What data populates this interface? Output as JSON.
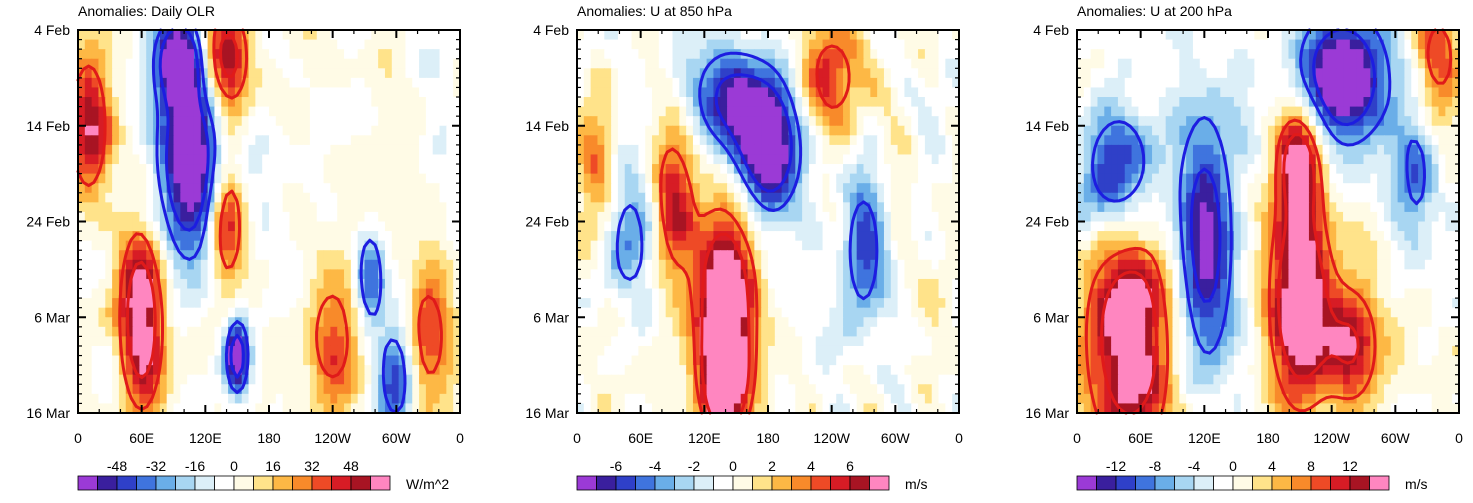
{
  "figure": {
    "palette_neg": [
      "#9b3ad6",
      "#3a1f9e",
      "#2f40c8",
      "#3f74de",
      "#6aaee8",
      "#a8d6f2",
      "#dceff8"
    ],
    "palette_mid": [
      "#ffffff",
      "#fffbe6"
    ],
    "palette_pos": [
      "#ffe38a",
      "#fdb845",
      "#f88a2a",
      "#ee4a26",
      "#d71c25",
      "#a81423",
      "#ff86c0"
    ],
    "contour_pos_color": "#e01a1a",
    "contour_neg_color": "#1d1de0"
  },
  "chart_data": [
    {
      "type": "heatmap",
      "title": "Anomalies: Daily OLR",
      "y_ticks": [
        "4 Feb",
        "14 Feb",
        "24 Feb",
        "6 Mar",
        "16 Mar"
      ],
      "x_ticks": [
        "0",
        "60E",
        "120E",
        "180",
        "120W",
        "60W",
        "0"
      ],
      "colorbar_labels": [
        "-48",
        "-32",
        "-16",
        "0",
        "16",
        "32",
        "48"
      ],
      "units": "W/m^2",
      "xlim": [
        0,
        360
      ],
      "time_range_days": [
        0,
        40
      ],
      "seed": 11,
      "features": [
        {
          "lon": 105,
          "day": 14,
          "amp": -1.0,
          "slon": 22,
          "sday": 7
        },
        {
          "lon": 95,
          "day": 3,
          "amp": -0.9,
          "slon": 15,
          "sday": 3
        },
        {
          "lon": 150,
          "day": 34,
          "amp": -0.8,
          "slon": 8,
          "sday": 3
        },
        {
          "lon": 300,
          "day": 36,
          "amp": -0.6,
          "slon": 12,
          "sday": 4
        },
        {
          "lon": 275,
          "day": 26,
          "amp": -0.6,
          "slon": 10,
          "sday": 4
        },
        {
          "lon": 60,
          "day": 30,
          "amp": 0.9,
          "slon": 15,
          "sday": 7
        },
        {
          "lon": 140,
          "day": 3,
          "amp": 0.8,
          "slon": 15,
          "sday": 4
        },
        {
          "lon": 140,
          "day": 20,
          "amp": 0.7,
          "slon": 12,
          "sday": 5
        },
        {
          "lon": 240,
          "day": 32,
          "amp": 0.5,
          "slon": 18,
          "sday": 5
        },
        {
          "lon": 10,
          "day": 10,
          "amp": 0.6,
          "slon": 15,
          "sday": 6
        },
        {
          "lon": 330,
          "day": 32,
          "amp": 0.5,
          "slon": 15,
          "sday": 5
        }
      ]
    },
    {
      "type": "heatmap",
      "title": "Anomalies: U at 850 hPa",
      "y_ticks": [
        "4 Feb",
        "14 Feb",
        "24 Feb",
        "6 Mar",
        "16 Mar"
      ],
      "x_ticks": [
        "0",
        "60E",
        "120E",
        "180",
        "120W",
        "60W",
        "0"
      ],
      "colorbar_labels": [
        "-6",
        "-4",
        "-2",
        "0",
        "2",
        "4",
        "6"
      ],
      "units": "m/s",
      "xlim": [
        0,
        360
      ],
      "time_range_days": [
        0,
        40
      ],
      "seed": 23,
      "features": [
        {
          "lon": 180,
          "day": 12,
          "amp": -1.0,
          "slon": 22,
          "sday": 5
        },
        {
          "lon": 140,
          "day": 7,
          "amp": -0.6,
          "slon": 25,
          "sday": 4
        },
        {
          "lon": 270,
          "day": 23,
          "amp": -0.5,
          "slon": 15,
          "sday": 6
        },
        {
          "lon": 50,
          "day": 22,
          "amp": -0.5,
          "slon": 20,
          "sday": 5
        },
        {
          "lon": 140,
          "day": 28,
          "amp": 1.0,
          "slon": 20,
          "sday": 7
        },
        {
          "lon": 140,
          "day": 37,
          "amp": 0.9,
          "slon": 15,
          "sday": 4
        },
        {
          "lon": 90,
          "day": 18,
          "amp": 0.6,
          "slon": 15,
          "sday": 6
        },
        {
          "lon": 240,
          "day": 5,
          "amp": 0.5,
          "slon": 20,
          "sday": 4
        },
        {
          "lon": 20,
          "day": 15,
          "amp": 0.4,
          "slon": 12,
          "sday": 6
        }
      ]
    },
    {
      "type": "heatmap",
      "title": "Anomalies: U at 200 hPa",
      "y_ticks": [
        "4 Feb",
        "14 Feb",
        "24 Feb",
        "6 Mar",
        "16 Mar"
      ],
      "x_ticks": [
        "0",
        "60E",
        "120E",
        "180",
        "120W",
        "60W",
        "0"
      ],
      "colorbar_labels": [
        "-12",
        "-8",
        "-4",
        "0",
        "4",
        "8",
        "12"
      ],
      "units": "m/s",
      "xlim": [
        0,
        360
      ],
      "time_range_days": [
        0,
        40
      ],
      "seed": 37,
      "features": [
        {
          "lon": 250,
          "day": 5,
          "amp": -1.0,
          "slon": 30,
          "sday": 5
        },
        {
          "lon": 120,
          "day": 22,
          "amp": -0.8,
          "slon": 20,
          "sday": 10
        },
        {
          "lon": 40,
          "day": 15,
          "amp": -0.7,
          "slon": 25,
          "sday": 5
        },
        {
          "lon": 320,
          "day": 15,
          "amp": -0.4,
          "slon": 15,
          "sday": 6
        },
        {
          "lon": 210,
          "day": 28,
          "amp": 1.0,
          "slon": 20,
          "sday": 8
        },
        {
          "lon": 210,
          "day": 13,
          "amp": 0.8,
          "slon": 15,
          "sday": 4
        },
        {
          "lon": 50,
          "day": 32,
          "amp": 0.9,
          "slon": 30,
          "sday": 9
        },
        {
          "lon": 260,
          "day": 33,
          "amp": 0.6,
          "slon": 20,
          "sday": 5
        },
        {
          "lon": 340,
          "day": 3,
          "amp": 0.5,
          "slon": 15,
          "sday": 4
        }
      ]
    }
  ]
}
